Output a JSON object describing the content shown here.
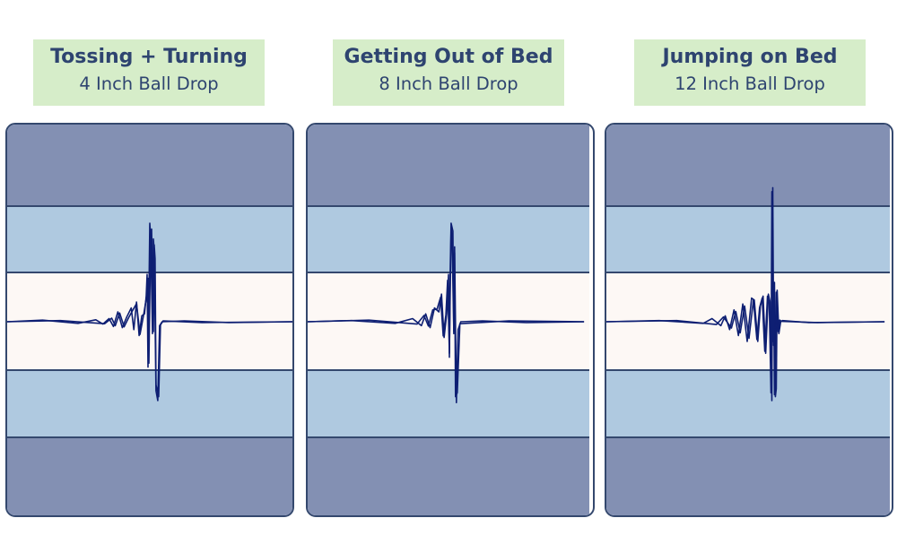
{
  "chart_data": [
    {
      "type": "line",
      "title": "Tossing + Turning",
      "subtitle": "4 Inch Ball Drop",
      "bands": [
        "#8390b3",
        "#afc9e0",
        "#fdf8f5",
        "#afc9e0",
        "#8390b3"
      ],
      "line_color": "#0e1f73",
      "series": [
        {
          "x": [
            0,
            40,
            80,
            100,
            108,
            115,
            120,
            125,
            130,
            135,
            140,
            143,
            146,
            149,
            152,
            155,
            157,
            158,
            159,
            161,
            162,
            164,
            165,
            166,
            168,
            170,
            172,
            175,
            200,
            250,
            322
          ],
          "y": [
            0,
            0.4,
            -0.4,
            0.5,
            -0.6,
            0.8,
            -1.2,
            2.5,
            -1.5,
            1.2,
            3.5,
            -2.0,
            5.0,
            -3.5,
            1.5,
            2.0,
            6.5,
            12.0,
            -11.5,
            25.0,
            21.0,
            -3.0,
            21.0,
            18.0,
            -17.5,
            -20.0,
            -1.0,
            0,
            0.2,
            -0.2,
            0
          ]
        },
        {
          "x": [
            0,
            60,
            110,
            118,
            122,
            127,
            132,
            137,
            142,
            146,
            150,
            154,
            157,
            159,
            160,
            162,
            163,
            165,
            166,
            167,
            168,
            171,
            173,
            176,
            220,
            322
          ],
          "y": [
            0,
            0.3,
            -0.5,
            0.9,
            -1.0,
            2.2,
            -1.3,
            1.0,
            3.0,
            4.6,
            -3.2,
            1.7,
            5.8,
            11.0,
            -10.5,
            22.5,
            23.5,
            -2.5,
            19.5,
            16.0,
            -16.0,
            -19.0,
            -0.8,
            0.2,
            -0.2,
            0
          ]
        }
      ]
    },
    {
      "type": "line",
      "title": "Getting Out of Bed",
      "subtitle": "8 Inch Ball Drop",
      "bands": [
        "#8390b3",
        "#afc9e0",
        "#fdf8f5",
        "#afc9e0",
        "#8390b3"
      ],
      "line_color": "#0e1f73",
      "series": [
        {
          "x": [
            0,
            50,
            100,
            120,
            130,
            135,
            140,
            145,
            150,
            153,
            156,
            159,
            161,
            162,
            163,
            164,
            166,
            167,
            168,
            170,
            172,
            175,
            200,
            250,
            316
          ],
          "y": [
            0,
            0.3,
            -0.4,
            0.8,
            -1.0,
            2.0,
            -1.5,
            3.5,
            2.5,
            7.0,
            -4.0,
            2.0,
            12.0,
            -9.0,
            14.0,
            25.0,
            23.0,
            -3.0,
            19.0,
            -20.5,
            -2.0,
            0,
            0.2,
            -0.2,
            0
          ]
        },
        {
          "x": [
            0,
            70,
            125,
            133,
            138,
            143,
            148,
            152,
            155,
            158,
            160,
            162,
            164,
            165,
            167,
            168,
            169,
            171,
            174,
            230,
            316
          ],
          "y": [
            0,
            0.4,
            -0.6,
            1.6,
            -1.1,
            3.0,
            3.2,
            6.2,
            -3.6,
            1.8,
            10.5,
            -8.0,
            24.0,
            22.0,
            -2.5,
            17.5,
            -19.0,
            -18.0,
            -0.5,
            0.2,
            0
          ]
        }
      ]
    },
    {
      "type": "line",
      "title": "Jumping on Bed",
      "subtitle": "12 Inch Ball Drop",
      "bands": [
        "#8390b3",
        "#afc9e0",
        "#fdf8f5",
        "#afc9e0",
        "#8390b3"
      ],
      "line_color": "#0e1f73",
      "series": [
        {
          "x": [
            0,
            60,
            110,
            120,
            130,
            135,
            140,
            145,
            150,
            155,
            160,
            165,
            168,
            172,
            175,
            178,
            181,
            184,
            186,
            188,
            189,
            190,
            191,
            192,
            193,
            194,
            196,
            198,
            200,
            230,
            316
          ],
          "y": [
            0,
            0.3,
            -0.4,
            0.8,
            -1.0,
            1.5,
            -2.0,
            3.0,
            -3.5,
            4.5,
            -5.0,
            6.0,
            5.5,
            -5.0,
            4.0,
            6.5,
            -8.0,
            7.0,
            5.0,
            -20.0,
            34.0,
            -6.0,
            10.0,
            -19.0,
            -17.0,
            8.0,
            -3.0,
            0,
            0.3,
            -0.2,
            0
          ]
        },
        {
          "x": [
            0,
            80,
            125,
            133,
            142,
            147,
            152,
            157,
            162,
            167,
            171,
            174,
            177,
            180,
            183,
            185,
            187,
            188,
            189,
            190,
            191,
            192,
            193,
            195,
            197,
            199,
            240,
            316
          ],
          "y": [
            0,
            0.3,
            -0.7,
            1.2,
            -1.6,
            2.6,
            -2.8,
            4.0,
            -4.2,
            5.5,
            -4.5,
            3.6,
            6.0,
            -7.5,
            6.5,
            4.5,
            -18.0,
            33.0,
            -5.0,
            9.5,
            -18.5,
            -16.5,
            7.5,
            -2.5,
            0.4,
            0.1,
            -0.2,
            0
          ]
        }
      ]
    }
  ]
}
